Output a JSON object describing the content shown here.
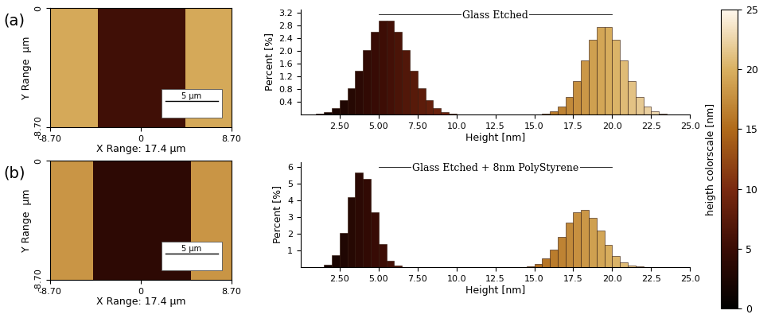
{
  "chart_data": [
    {
      "type": "heatmap",
      "panel_label": "(a)",
      "x_edges": [
        -8.7,
        -4.1,
        4.3,
        8.7
      ],
      "y_edges": [
        -8.7,
        0
      ],
      "cells": [
        [
          19.5,
          5.5,
          19.5
        ]
      ],
      "xlim": [
        -8.7,
        8.7
      ],
      "xticks": [
        {
          "value": -8.7,
          "label": "-8.70"
        },
        0,
        {
          "value": 8.7,
          "label": "8.70"
        }
      ],
      "ylim": [
        -8.7,
        0
      ],
      "yticks": [
        {
          "value": -8.7,
          "label": "-8.70"
        },
        0
      ],
      "x_label": "X Range: 17.4 μm",
      "y_label": "Y Range  μm",
      "scale_bar": {
        "length": 5,
        "label": "5 μm"
      }
    },
    {
      "type": "heatmap",
      "panel_label": "(b)",
      "x_edges": [
        -8.7,
        -4.6,
        4.8,
        8.7
      ],
      "y_edges": [
        -8.7,
        0
      ],
      "cells": [
        [
          18.0,
          4.0,
          18.0
        ]
      ],
      "xlim": [
        -8.7,
        8.7
      ],
      "xticks": [
        {
          "value": -8.7,
          "label": "-8.70"
        },
        0,
        {
          "value": 8.7,
          "label": "8.70"
        }
      ],
      "ylim": [
        -8.7,
        0
      ],
      "yticks": [
        {
          "value": -8.7,
          "label": "-8.70"
        },
        0
      ],
      "x_label": "X Range: 17.4 μm",
      "y_label": "Y Range  μm",
      "scale_bar": {
        "length": 5,
        "label": "5 μm"
      }
    },
    {
      "type": "histogram",
      "title": "Glass Etched",
      "bins": [
        0,
        0.5,
        1,
        1.5,
        2,
        2.5,
        3,
        3.5,
        4,
        4.5,
        5,
        5.5,
        6,
        6.5,
        7,
        7.5,
        8,
        8.5,
        9,
        9.5,
        10,
        10.5,
        11,
        11.5,
        12,
        12.5,
        13,
        13.5,
        14,
        14.5,
        15,
        15.5,
        16,
        16.5,
        17,
        17.5,
        18,
        18.5,
        19,
        19.5,
        20,
        20.5,
        21,
        21.5,
        22,
        22.5,
        23,
        23.5,
        24,
        24.5,
        25
      ],
      "counts": [
        0,
        0.01,
        0.03,
        0.08,
        0.2,
        0.44,
        0.82,
        1.37,
        2.02,
        2.6,
        2.95,
        2.95,
        2.6,
        2.02,
        1.37,
        0.82,
        0.44,
        0.2,
        0.08,
        0.03,
        0.01,
        0,
        0,
        0,
        0,
        0,
        0,
        0,
        0,
        0,
        0,
        0.03,
        0.1,
        0.25,
        0.55,
        1.05,
        1.7,
        2.34,
        2.74,
        2.74,
        2.34,
        1.7,
        1.05,
        0.55,
        0.25,
        0.1,
        0.03,
        0,
        0,
        0
      ],
      "xlim": [
        0,
        25
      ],
      "xticks": [
        {
          "value": 2.5,
          "label": "2.50"
        },
        {
          "value": 5,
          "label": "5.00"
        },
        {
          "value": 7.5,
          "label": "7.50"
        },
        {
          "value": 10,
          "label": "10.0"
        },
        12.5,
        {
          "value": 15,
          "label": "15.0"
        },
        17.5,
        {
          "value": 20,
          "label": "20.0"
        },
        22.5,
        {
          "value": 25,
          "label": "25.0"
        }
      ],
      "ylim": [
        0,
        3.3
      ],
      "yticks": [
        0.4,
        0.8,
        1.2,
        1.6,
        2.0,
        2.4,
        2.8,
        3.2
      ],
      "x_label": "Height [nm]",
      "y_label": "Percent [%]"
    },
    {
      "type": "histogram",
      "title": "Glass Etched + 8nm PolyStyrene",
      "bins": [
        0,
        0.5,
        1,
        1.5,
        2,
        2.5,
        3,
        3.5,
        4,
        4.5,
        5,
        5.5,
        6,
        6.5,
        7,
        7.5,
        8,
        8.5,
        9,
        9.5,
        10,
        10.5,
        11,
        11.5,
        12,
        12.5,
        13,
        13.5,
        14,
        14.5,
        15,
        15.5,
        16,
        16.5,
        17,
        17.5,
        18,
        18.5,
        19,
        19.5,
        20,
        20.5,
        21,
        21.5,
        22,
        22.5,
        23,
        23.5,
        24,
        24.5,
        25
      ],
      "counts": [
        0,
        0,
        0.02,
        0.15,
        0.7,
        2.05,
        4.2,
        5.7,
        5.3,
        3.3,
        1.4,
        0.4,
        0.08,
        0.01,
        0,
        0,
        0,
        0,
        0,
        0,
        0,
        0,
        0,
        0,
        0,
        0,
        0,
        0,
        0,
        0.07,
        0.21,
        0.51,
        1.05,
        1.83,
        2.68,
        3.3,
        3.42,
        2.98,
        2.18,
        1.34,
        0.69,
        0.3,
        0.11,
        0.03,
        0,
        0,
        0,
        0,
        0,
        0
      ],
      "xlim": [
        0,
        25
      ],
      "xticks": [
        {
          "value": 2.5,
          "label": "2.50"
        },
        {
          "value": 5,
          "label": "5.00"
        },
        {
          "value": 7.5,
          "label": "7.50"
        },
        {
          "value": 10,
          "label": "10.0"
        },
        12.5,
        {
          "value": 15,
          "label": "15.0"
        },
        17.5,
        {
          "value": 20,
          "label": "20.0"
        },
        22.5,
        {
          "value": 25,
          "label": "25.0"
        }
      ],
      "ylim": [
        0,
        6.3
      ],
      "yticks": [
        1,
        2,
        3,
        4,
        5,
        6
      ],
      "x_label": "Height [nm]",
      "y_label": "Percent [%]"
    }
  ],
  "colorbar": {
    "range": [
      0,
      25
    ],
    "ticks": [
      0,
      5,
      10,
      15,
      20,
      25
    ],
    "label": "heigth colorscale [nm]"
  }
}
